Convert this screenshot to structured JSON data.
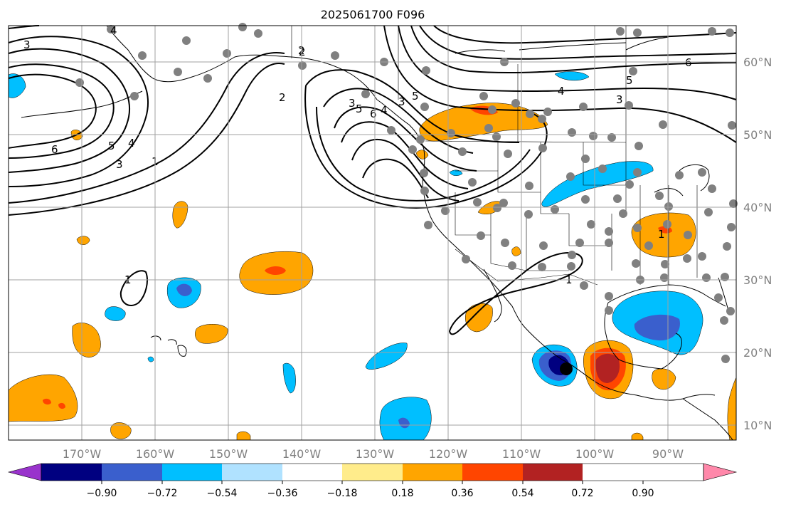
{
  "title": "2025061700 F096",
  "map": {
    "lon_labels": [
      "170°W",
      "160°W",
      "150°W",
      "140°W",
      "130°W",
      "120°W",
      "110°W",
      "100°W",
      "90°W"
    ],
    "lat_labels": [
      "60°N",
      "50°N",
      "40°N",
      "30°N",
      "20°N",
      "10°N"
    ],
    "contour_labels": [
      "3",
      "4",
      "2",
      "6",
      "5",
      "4",
      "3",
      "1",
      "2",
      "5",
      "6",
      "4",
      "5",
      "3",
      "6",
      "5",
      "4",
      "3",
      "1",
      "1",
      "1",
      "2",
      "3"
    ],
    "colors": {
      "contour": "#000000",
      "grid": "#a0a0a0",
      "station_dot": "#808080",
      "coast": "#000000"
    }
  },
  "colorbar": {
    "tick_labels": [
      "−0.90",
      "−0.72",
      "−0.54",
      "−0.36",
      "−0.18",
      "0.18",
      "0.36",
      "0.54",
      "0.72",
      "0.90"
    ],
    "colors": [
      "#9933cc",
      "#000080",
      "#3a5fcd",
      "#00bfff",
      "#b0e2ff",
      "#ffffff",
      "#ffec8b",
      "#ffa500",
      "#ff4500",
      "#b22222",
      "#ff88aa"
    ]
  }
}
